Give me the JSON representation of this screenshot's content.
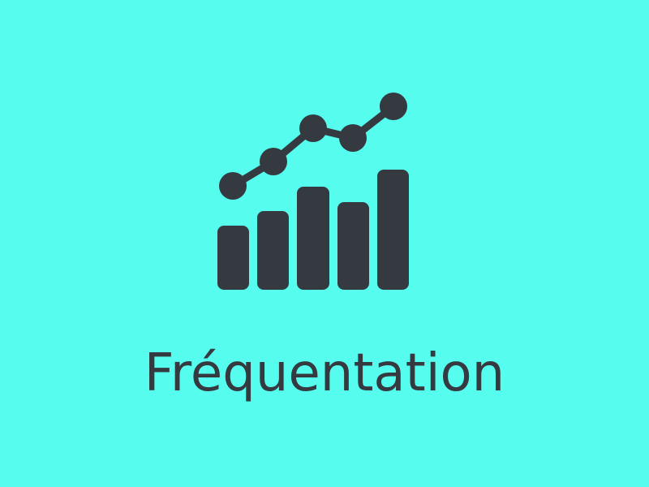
{
  "tile": {
    "label": "Fréquentation",
    "icon": "bar-line-chart-icon",
    "colors": {
      "background": "#56fcee",
      "foreground": "#343a40"
    }
  }
}
